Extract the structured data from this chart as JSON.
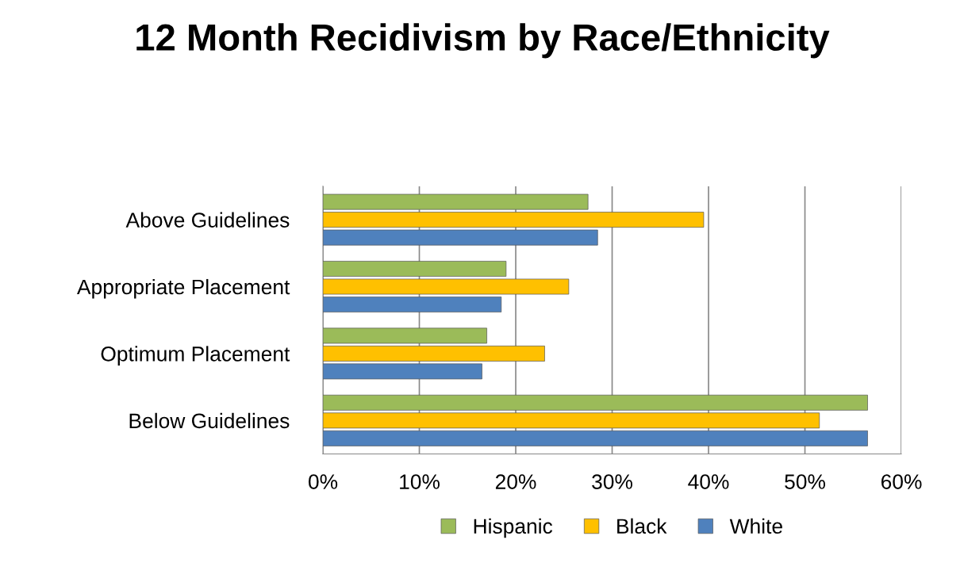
{
  "chart_data": {
    "type": "bar",
    "orientation": "horizontal",
    "title": "12 Month Recidivism by Race/Ethnicity",
    "categories": [
      "Above Guidelines",
      "Appropriate Placement",
      "Optimum Placement",
      "Below Guidelines"
    ],
    "series": [
      {
        "name": "Hispanic",
        "color": "#9bbb59",
        "values": [
          27.5,
          19,
          17,
          56.5
        ]
      },
      {
        "name": "Black",
        "color": "#ffc000",
        "values": [
          39.5,
          25.5,
          23,
          51.5
        ]
      },
      {
        "name": "White",
        "color": "#4f81bd",
        "values": [
          28.5,
          18.5,
          16.5,
          56.5
        ]
      }
    ],
    "xlim": [
      0,
      60
    ],
    "xticks": [
      {
        "value": 0,
        "label": "0%"
      },
      {
        "value": 10,
        "label": "10%"
      },
      {
        "value": 20,
        "label": "20%"
      },
      {
        "value": 30,
        "label": "30%"
      },
      {
        "value": 40,
        "label": "40%"
      },
      {
        "value": 50,
        "label": "50%"
      },
      {
        "value": 60,
        "label": "60%"
      }
    ],
    "grid": "x",
    "legend": "bottom"
  }
}
